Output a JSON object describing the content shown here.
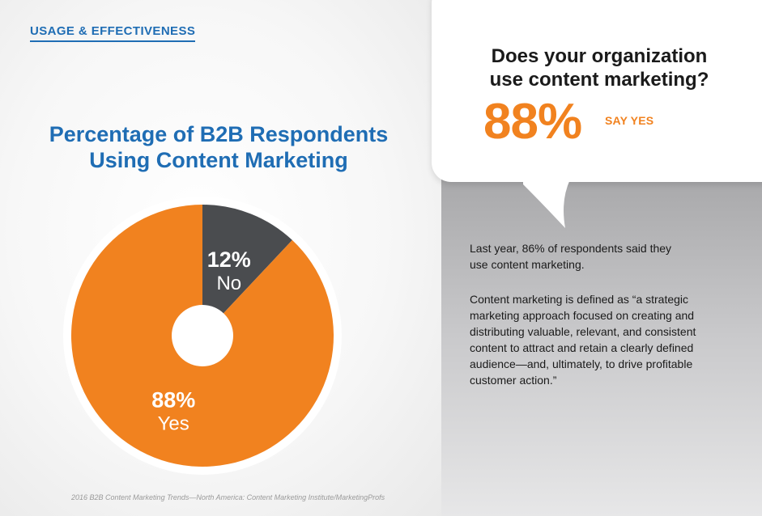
{
  "colors": {
    "brand_blue": "#1f6db4",
    "accent_orange": "#f1821f",
    "slice_dark": "#4a4c4f",
    "text_dark": "#1a1a1a"
  },
  "header": {
    "section_label": "USAGE & EFFECTIVENESS"
  },
  "chart": {
    "title_line1": "Percentage of B2B Respondents",
    "title_line2": "Using Content Marketing",
    "source": "2016 B2B Content Marketing Trends—North America: Content Marketing Institute/MarketingProfs"
  },
  "chart_data": {
    "type": "pie",
    "title": "Percentage of B2B Respondents Using Content Marketing",
    "slices": [
      {
        "label": "No",
        "value": 12,
        "value_label": "12%",
        "color": "#4a4c4f"
      },
      {
        "label": "Yes",
        "value": 88,
        "value_label": "88%",
        "color": "#f1821f"
      }
    ],
    "donut_hole": true
  },
  "callout": {
    "question_line1": "Does your organization",
    "question_line2": "use content marketing?",
    "big_number": "88%",
    "big_label": "SAY YES"
  },
  "description": {
    "p1": [
      "Last year, 86% of respondents said they",
      "use content marketing."
    ],
    "p2": [
      "Content marketing is defined as “a strategic",
      "marketing approach focused on creating and",
      "distributing valuable, relevant, and consistent",
      "content to attract and retain a clearly defined",
      "audience—and, ultimately, to drive profitable",
      "customer action.”"
    ]
  }
}
